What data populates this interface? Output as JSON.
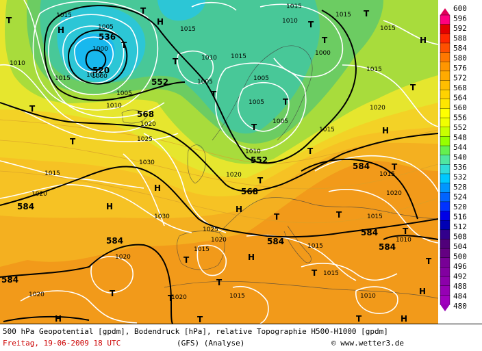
{
  "map": {
    "geopotential_labels": [
      "536",
      "520",
      "552",
      "552",
      "568",
      "568",
      "584",
      "584",
      "584",
      "584",
      "584",
      "584",
      "584"
    ],
    "pressure_labels": [
      "1015",
      "1005",
      "1000",
      "1000",
      "1000",
      "1010",
      "1005",
      "1015",
      "1015",
      "1010",
      "1015",
      "1010",
      "1015",
      "1005",
      "1010",
      "1005",
      "1005",
      "1015",
      "1020",
      "1015",
      "1015",
      "1020",
      "1015",
      "1005",
      "1010",
      "1020",
      "1025",
      "1030",
      "1020",
      "1015",
      "1020",
      "1030",
      "1025",
      "1020",
      "1015",
      "1015",
      "1020",
      "1015",
      "1015",
      "1010",
      "1020",
      "1020",
      "1015",
      "1015",
      "1010",
      "1010"
    ],
    "pressure_center_labels": [
      "T",
      "T",
      "H",
      "T",
      "T",
      "T",
      "T",
      "T",
      "T",
      "T",
      "T",
      "T",
      "H",
      "T",
      "T",
      "H",
      "T",
      "T",
      "H",
      "T",
      "T",
      "H",
      "H",
      "H",
      "T",
      "T",
      "T",
      "T",
      "T",
      "T",
      "T",
      "T",
      "H",
      "H",
      "T",
      "T",
      "H",
      "H"
    ]
  },
  "legend": {
    "labels": [
      "600",
      "596",
      "592",
      "588",
      "584",
      "580",
      "576",
      "572",
      "568",
      "564",
      "560",
      "556",
      "552",
      "548",
      "544",
      "540",
      "536",
      "532",
      "528",
      "524",
      "520",
      "516",
      "512",
      "508",
      "504",
      "500",
      "496",
      "492",
      "488",
      "484",
      "480"
    ],
    "colors": [
      "#ff007f",
      "#e20000",
      "#ff2800",
      "#ff5000",
      "#ff7800",
      "#ff9600",
      "#ffaa00",
      "#ffbe00",
      "#ffd200",
      "#ffe600",
      "#ffff00",
      "#f0ff00",
      "#c8ff00",
      "#96ff00",
      "#64f050",
      "#50e6a0",
      "#30dcd8",
      "#00c8ff",
      "#0096ff",
      "#0064ff",
      "#0032ff",
      "#0000e6",
      "#0000b4",
      "#32008c",
      "#50007a",
      "#640082",
      "#780096",
      "#8200a0",
      "#8c00aa",
      "#9600b4",
      "#a000be"
    ]
  },
  "footer": {
    "line1": "500 hPa Geopotential [gpdm], Bodendruck [hPa], relative Topographie H500-H1000 [gpdm]",
    "date": "Freitag, 19-06-2009  18 UTC",
    "model": "(GFS)  (Analyse)",
    "copyright": "© www.wetter3.de"
  }
}
